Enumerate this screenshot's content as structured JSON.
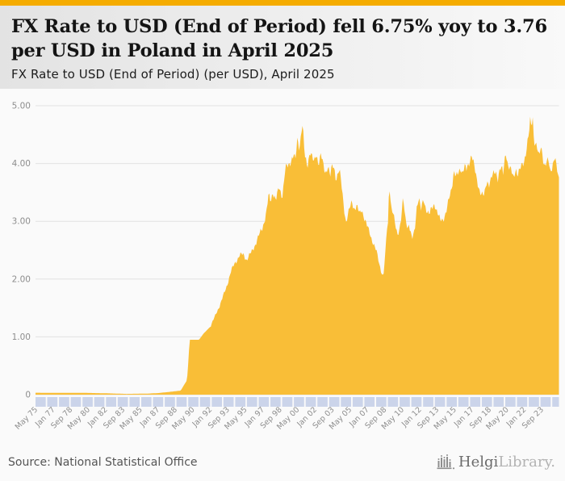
{
  "header": {
    "title": "FX Rate to USD (End of Period) fell 6.75% yoy to 3.76 per USD in Poland in April 2025",
    "subtitle": "FX Rate to USD (End of Period) (per USD), April 2025"
  },
  "footer": {
    "source": "Source: National Statistical Office",
    "logo": {
      "text_primary": "Helgi",
      "text_secondary": "Library."
    }
  },
  "chart_data": {
    "type": "area",
    "title": "FX Rate to USD (End of Period) (per USD), April 2025",
    "country": "Poland",
    "unit": "per USD",
    "latest_period": "April 2025",
    "latest_value": 3.76,
    "yoy_change_pct": -6.75,
    "ylim": [
      0,
      5
    ],
    "y_tick_labels": [
      "5.00",
      "4.00",
      "3.00",
      "2.00",
      "1.00",
      "0"
    ],
    "x_tick_labels": [
      "May 75",
      "Jan 77",
      "Sep 78",
      "May 80",
      "Jan 82",
      "Sep 83",
      "May 85",
      "Jan 87",
      "Sep 88",
      "May 90",
      "Jan 92",
      "Sep 93",
      "May 95",
      "Jan 97",
      "Sep 98",
      "May 00",
      "Jan 02",
      "Sep 03",
      "May 05",
      "Jan 07",
      "Sep 08",
      "May 10",
      "Jan 12",
      "Sep 13",
      "May 15",
      "Jan 17",
      "Sep 18",
      "May 20",
      "Jan 22",
      "Sep 23"
    ],
    "x_range": [
      "May 1975",
      "Apr 2025"
    ],
    "grid": true,
    "legend": false,
    "colors": {
      "area_fill": "#f9bd33",
      "topbar": "#f5ac00",
      "gridline": "#e2e2e2",
      "axis_label": "#8d8d8d",
      "scrollbar_cell": "#cbd4ea"
    },
    "series": [
      {
        "name": "FX Rate to USD (End of Period)",
        "points": [
          [
            1975.33,
            0.033
          ],
          [
            1978,
            0.032
          ],
          [
            1980,
            0.031
          ],
          [
            1982,
            0.024
          ],
          [
            1984,
            0.013
          ],
          [
            1986,
            0.018
          ],
          [
            1987,
            0.027
          ],
          [
            1988,
            0.045
          ],
          [
            1989.2,
            0.07
          ],
          [
            1989.8,
            0.25
          ],
          [
            1989.95,
            0.6
          ],
          [
            1990.05,
            0.95
          ],
          [
            1990.95,
            0.95
          ],
          [
            1991.4,
            1.06
          ],
          [
            1992,
            1.17
          ],
          [
            1992.5,
            1.36
          ],
          [
            1993,
            1.58
          ],
          [
            1993.5,
            1.82
          ],
          [
            1994,
            2.13
          ],
          [
            1994.4,
            2.28
          ],
          [
            1994.8,
            2.41
          ],
          [
            1995.2,
            2.42
          ],
          [
            1995.5,
            2.34
          ],
          [
            1996,
            2.47
          ],
          [
            1996.5,
            2.68
          ],
          [
            1997,
            2.88
          ],
          [
            1997.4,
            3.17
          ],
          [
            1997.6,
            3.44
          ],
          [
            1997.8,
            3.34
          ],
          [
            1998,
            3.52
          ],
          [
            1998.3,
            3.36
          ],
          [
            1998.6,
            3.58
          ],
          [
            1998.9,
            3.44
          ],
          [
            1999.2,
            3.9
          ],
          [
            1999.5,
            3.96
          ],
          [
            1999.8,
            4.1
          ],
          [
            2000,
            4.15
          ],
          [
            2000.15,
            4.02
          ],
          [
            2000.35,
            4.42
          ],
          [
            2000.55,
            4.28
          ],
          [
            2000.8,
            4.71
          ],
          [
            2000.93,
            4.45
          ],
          [
            2001.05,
            4.1
          ],
          [
            2001.3,
            3.96
          ],
          [
            2001.55,
            4.24
          ],
          [
            2001.75,
            4.1
          ],
          [
            2001.95,
            3.99
          ],
          [
            2002.15,
            4.18
          ],
          [
            2002.35,
            4.02
          ],
          [
            2002.6,
            4.15
          ],
          [
            2002.85,
            3.92
          ],
          [
            2003.05,
            3.84
          ],
          [
            2003.25,
            3.98
          ],
          [
            2003.5,
            3.78
          ],
          [
            2003.7,
            3.96
          ],
          [
            2003.9,
            3.9
          ],
          [
            2004.05,
            3.74
          ],
          [
            2004.3,
            3.88
          ],
          [
            2004.45,
            3.78
          ],
          [
            2004.6,
            3.55
          ],
          [
            2004.85,
            3.18
          ],
          [
            2005,
            2.99
          ],
          [
            2005.3,
            3.18
          ],
          [
            2005.55,
            3.35
          ],
          [
            2005.8,
            3.22
          ],
          [
            2006,
            3.26
          ],
          [
            2006.3,
            3.12
          ],
          [
            2006.5,
            3.22
          ],
          [
            2006.75,
            3.05
          ],
          [
            2007,
            2.91
          ],
          [
            2007.3,
            2.78
          ],
          [
            2007.6,
            2.62
          ],
          [
            2007.9,
            2.47
          ],
          [
            2008.1,
            2.32
          ],
          [
            2008.35,
            2.15
          ],
          [
            2008.55,
            2.03
          ],
          [
            2008.75,
            2.42
          ],
          [
            2008.9,
            2.88
          ],
          [
            2009,
            2.96
          ],
          [
            2009.13,
            3.7
          ],
          [
            2009.3,
            3.25
          ],
          [
            2009.5,
            3.12
          ],
          [
            2009.7,
            2.92
          ],
          [
            2009.9,
            2.78
          ],
          [
            2010.1,
            2.88
          ],
          [
            2010.3,
            3.1
          ],
          [
            2010.45,
            3.39
          ],
          [
            2010.65,
            3.05
          ],
          [
            2010.9,
            2.9
          ],
          [
            2011,
            2.96
          ],
          [
            2011.3,
            2.67
          ],
          [
            2011.55,
            2.84
          ],
          [
            2011.75,
            3.26
          ],
          [
            2011.95,
            3.42
          ],
          [
            2012.15,
            3.17
          ],
          [
            2012.4,
            3.38
          ],
          [
            2012.65,
            3.22
          ],
          [
            2012.95,
            3.1
          ],
          [
            2013.2,
            3.23
          ],
          [
            2013.45,
            3.32
          ],
          [
            2013.75,
            3.12
          ],
          [
            2014,
            3.01
          ],
          [
            2014.3,
            3.05
          ],
          [
            2014.6,
            3.18
          ],
          [
            2014.85,
            3.39
          ],
          [
            2015,
            3.51
          ],
          [
            2015.2,
            3.73
          ],
          [
            2015.3,
            3.9
          ],
          [
            2015.5,
            3.76
          ],
          [
            2015.75,
            3.82
          ],
          [
            2015.95,
            3.94
          ],
          [
            2016.1,
            3.86
          ],
          [
            2016.3,
            3.95
          ],
          [
            2016.5,
            3.87
          ],
          [
            2016.7,
            3.97
          ],
          [
            2016.9,
            4.13
          ],
          [
            2017,
            4.18
          ],
          [
            2017.2,
            3.98
          ],
          [
            2017.45,
            3.72
          ],
          [
            2017.7,
            3.58
          ],
          [
            2017.95,
            3.48
          ],
          [
            2018.2,
            3.42
          ],
          [
            2018.45,
            3.7
          ],
          [
            2018.65,
            3.66
          ],
          [
            2018.9,
            3.76
          ],
          [
            2019.1,
            3.8
          ],
          [
            2019.3,
            3.86
          ],
          [
            2019.5,
            3.76
          ],
          [
            2019.7,
            3.92
          ],
          [
            2019.9,
            3.88
          ],
          [
            2020,
            3.8
          ],
          [
            2020.2,
            4.15
          ],
          [
            2020.28,
            4.23
          ],
          [
            2020.45,
            3.98
          ],
          [
            2020.65,
            3.9
          ],
          [
            2020.85,
            3.82
          ],
          [
            2021,
            3.76
          ],
          [
            2021.2,
            3.94
          ],
          [
            2021.4,
            3.8
          ],
          [
            2021.6,
            3.87
          ],
          [
            2021.8,
            3.97
          ],
          [
            2022,
            4.06
          ],
          [
            2022.2,
            4.22
          ],
          [
            2022.45,
            4.47
          ],
          [
            2022.6,
            4.75
          ],
          [
            2022.72,
            4.6
          ],
          [
            2022.8,
            4.97
          ],
          [
            2022.9,
            4.52
          ],
          [
            2023,
            4.4
          ],
          [
            2023.2,
            4.28
          ],
          [
            2023.45,
            4.08
          ],
          [
            2023.6,
            4.33
          ],
          [
            2023.75,
            4.2
          ],
          [
            2023.95,
            3.94
          ],
          [
            2024.15,
            3.99
          ],
          [
            2024.35,
            4.05
          ],
          [
            2024.5,
            3.88
          ],
          [
            2024.65,
            3.95
          ],
          [
            2024.8,
            4.02
          ],
          [
            2024.95,
            4.1
          ],
          [
            2025.05,
            4.0
          ],
          [
            2025.17,
            3.86
          ],
          [
            2025.33,
            3.76
          ]
        ]
      }
    ]
  }
}
